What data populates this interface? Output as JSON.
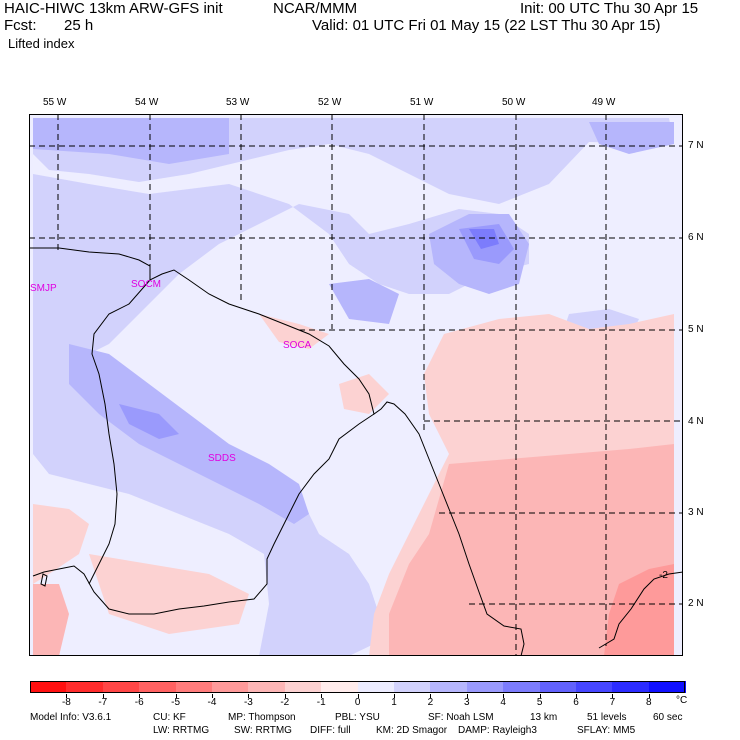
{
  "header": {
    "model": "HAIC-HIWC 13km ARW-GFS init",
    "center": "NCAR/MMM",
    "init": "Init: 00 UTC Thu 30 Apr 15",
    "fcst_label": "Fcst:",
    "fcst_value": "25 h",
    "valid": "Valid: 01 UTC Fri 01 May 15 (22 LST Thu 30 Apr 15)",
    "field": "Lifted index"
  },
  "map": {
    "lon_labels": [
      "55 W",
      "54 W",
      "53 W",
      "52 W",
      "51 W",
      "50 W",
      "49 W"
    ],
    "lat_labels": [
      "7 N",
      "6 N",
      "5 N",
      "4 N",
      "3 N",
      "2 N"
    ],
    "stations": [
      "SMJP",
      "SOCM",
      "SOCA",
      "SDDS"
    ],
    "contour_label": "-2"
  },
  "colorbar": {
    "labels": [
      "-8",
      "-7",
      "-6",
      "-5",
      "-4",
      "-3",
      "-2",
      "-1",
      "0",
      "1",
      "2",
      "3",
      "4",
      "5",
      "6",
      "7",
      "8"
    ],
    "unit": "°C",
    "colors": [
      "#ff1010",
      "#ff2c2c",
      "#ff4646",
      "#ff6262",
      "#ff7c7c",
      "#fe9a9a",
      "#fcb6b6",
      "#fcd2d2",
      "#ffecec",
      "#ececff",
      "#d2d2fc",
      "#b6b6fc",
      "#9a9afc",
      "#7c7cfc",
      "#6262fc",
      "#4646ff",
      "#2c2cff",
      "#1010ff"
    ]
  },
  "footer": {
    "line1": [
      "Model Info: V3.6.1",
      "CU: KF",
      "MP: Thompson",
      "PBL: YSU",
      "SF: Noah LSM",
      "13 km",
      "51 levels",
      "60 sec"
    ],
    "line2": [
      "LW: RRTMG",
      "SW: RRTMG",
      "DIFF: full",
      "KM: 2D Smagor",
      "DAMP: Rayleigh3",
      "SFLAY: MM5"
    ]
  }
}
